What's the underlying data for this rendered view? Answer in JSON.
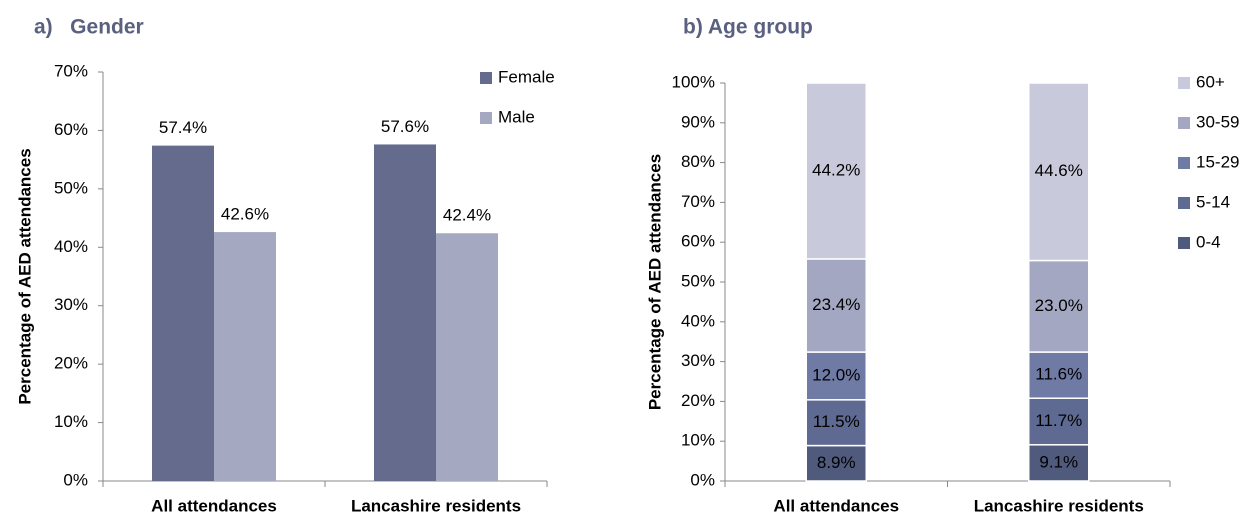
{
  "chart_data": [
    {
      "type": "bar",
      "title": "a)   Gender",
      "y_label": "Percentage of AED attendances",
      "categories": [
        "All attendances",
        "Lancashire residents"
      ],
      "series": [
        {
          "name": "Female",
          "color": "#646b8d",
          "values": [
            57.4,
            57.6
          ],
          "value_labels": [
            "57.4%",
            "57.6%"
          ]
        },
        {
          "name": "Male",
          "color": "#a4a8c1",
          "values": [
            42.6,
            42.4
          ],
          "value_labels": [
            "42.6%",
            "42.4%"
          ]
        }
      ],
      "ylim": [
        0,
        70
      ],
      "yticks": [
        {
          "value": 0,
          "label": "0%"
        },
        {
          "value": 10,
          "label": "10%"
        },
        {
          "value": 20,
          "label": "20%"
        },
        {
          "value": 30,
          "label": "30%"
        },
        {
          "value": 40,
          "label": "40%"
        },
        {
          "value": 50,
          "label": "50%"
        },
        {
          "value": 60,
          "label": "60%"
        },
        {
          "value": 70,
          "label": "70%"
        }
      ],
      "legend": "top-right"
    },
    {
      "type": "stacked_bar",
      "title": "b) Age group",
      "y_label": "Percentage of AED attendances",
      "categories": [
        "All attendances",
        "Lancashire residents"
      ],
      "series": [
        {
          "name": "0-4",
          "color": "#4f5a7d",
          "values": [
            8.9,
            9.1
          ],
          "value_labels": [
            "8.9%",
            "9.1%"
          ]
        },
        {
          "name": "5-14",
          "color": "#5f6a93",
          "values": [
            11.5,
            11.7
          ],
          "value_labels": [
            "11.5%",
            "11.7%"
          ]
        },
        {
          "name": "15-29",
          "color": "#6f7aa5",
          "values": [
            12.0,
            11.6
          ],
          "value_labels": [
            "12.0%",
            "11.6%"
          ]
        },
        {
          "name": "30-59",
          "color": "#a3a7c1",
          "values": [
            23.4,
            23.0
          ],
          "value_labels": [
            "23.4%",
            "23.0%"
          ]
        },
        {
          "name": "60+",
          "color": "#c8cadb",
          "values": [
            44.2,
            44.6
          ],
          "value_labels": [
            "44.2%",
            "44.6%"
          ]
        }
      ],
      "ylim": [
        0,
        100
      ],
      "yticks": [
        {
          "value": 0,
          "label": "0%"
        },
        {
          "value": 10,
          "label": "10%"
        },
        {
          "value": 20,
          "label": "20%"
        },
        {
          "value": 30,
          "label": "30%"
        },
        {
          "value": 40,
          "label": "40%"
        },
        {
          "value": 50,
          "label": "50%"
        },
        {
          "value": 60,
          "label": "60%"
        },
        {
          "value": 70,
          "label": "70%"
        },
        {
          "value": 80,
          "label": "80%"
        },
        {
          "value": 90,
          "label": "90%"
        },
        {
          "value": 100,
          "label": "100%"
        }
      ],
      "legend": "right"
    }
  ]
}
